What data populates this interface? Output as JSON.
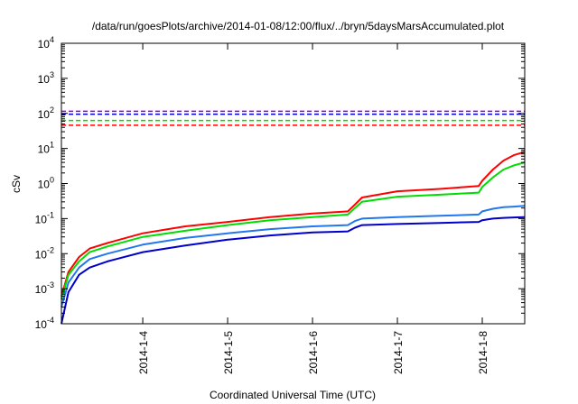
{
  "chart_data": {
    "type": "line",
    "title": "/data/run/goesPlots/archive/2014-01-08/12:00/flux/../bryn/5daysMarsAccumulated.plot",
    "xlabel": "Coordinated Universal Time (UTC)",
    "ylabel": "cSv",
    "yscale": "log",
    "ylim": [
      0.0001,
      10000
    ],
    "xlim": [
      "2014-01-03 01:00",
      "2014-01-08 12:00"
    ],
    "x_ticks": [
      "2014-1-4",
      "2014-1-5",
      "2014-1-6",
      "2014-1-7",
      "2014-1-8"
    ],
    "y_ticks": [
      {
        "base": "10",
        "exp": "-4"
      },
      {
        "base": "10",
        "exp": "-3"
      },
      {
        "base": "10",
        "exp": "-2"
      },
      {
        "base": "10",
        "exp": "-1"
      },
      {
        "base": "10",
        "exp": "0"
      },
      {
        "base": "10",
        "exp": "1"
      },
      {
        "base": "10",
        "exp": "2"
      },
      {
        "base": "10",
        "exp": "3"
      },
      {
        "base": "10",
        "exp": "4"
      }
    ],
    "grid": false,
    "legend": "none",
    "series": [
      {
        "color": "#ff0000",
        "style": "solid",
        "x": [
          "2014-01-03 01:00",
          "2014-01-03 03:00",
          "2014-01-03 06:00",
          "2014-01-03 09:00",
          "2014-01-03 14:00",
          "2014-01-04 00:00",
          "2014-01-04 12:00",
          "2014-01-05 00:00",
          "2014-01-05 12:00",
          "2014-01-06 00:00",
          "2014-01-06 10:00",
          "2014-01-06 12:00",
          "2014-01-06 14:00",
          "2014-01-07 00:00",
          "2014-01-07 12:00",
          "2014-01-07 23:00",
          "2014-01-08 00:00",
          "2014-01-08 03:00",
          "2014-01-08 06:00",
          "2014-01-08 09:00",
          "2014-01-08 12:00"
        ],
        "y": [
          0.0006,
          0.003,
          0.008,
          0.014,
          0.02,
          0.038,
          0.06,
          0.08,
          0.11,
          0.14,
          0.16,
          0.25,
          0.4,
          0.6,
          0.7,
          0.85,
          1.2,
          2.5,
          4.5,
          6.5,
          8
        ]
      },
      {
        "color": "#00dd00",
        "style": "solid",
        "x": [
          "2014-01-03 01:00",
          "2014-01-03 03:00",
          "2014-01-03 06:00",
          "2014-01-03 09:00",
          "2014-01-03 14:00",
          "2014-01-04 00:00",
          "2014-01-04 12:00",
          "2014-01-05 00:00",
          "2014-01-05 12:00",
          "2014-01-06 00:00",
          "2014-01-06 10:00",
          "2014-01-06 12:00",
          "2014-01-06 14:00",
          "2014-01-07 00:00",
          "2014-01-07 12:00",
          "2014-01-07 23:00",
          "2014-01-08 00:00",
          "2014-01-08 03:00",
          "2014-01-08 06:00",
          "2014-01-08 09:00",
          "2014-01-08 12:00"
        ],
        "y": [
          0.0005,
          0.0025,
          0.006,
          0.011,
          0.016,
          0.03,
          0.045,
          0.065,
          0.09,
          0.11,
          0.13,
          0.2,
          0.3,
          0.42,
          0.48,
          0.55,
          0.8,
          1.5,
          2.5,
          3.3,
          4
        ]
      },
      {
        "color": "#2277ee",
        "style": "solid",
        "x": [
          "2014-01-03 01:00",
          "2014-01-03 03:00",
          "2014-01-03 06:00",
          "2014-01-03 09:00",
          "2014-01-03 14:00",
          "2014-01-04 00:00",
          "2014-01-04 12:00",
          "2014-01-05 00:00",
          "2014-01-05 12:00",
          "2014-01-06 00:00",
          "2014-01-06 10:00",
          "2014-01-06 12:00",
          "2014-01-06 14:00",
          "2014-01-07 00:00",
          "2014-01-07 12:00",
          "2014-01-07 23:00",
          "2014-01-08 00:00",
          "2014-01-08 03:00",
          "2014-01-08 06:00",
          "2014-01-08 09:00",
          "2014-01-08 12:00"
        ],
        "y": [
          0.0003,
          0.0015,
          0.004,
          0.007,
          0.01,
          0.018,
          0.028,
          0.038,
          0.05,
          0.06,
          0.065,
          0.085,
          0.1,
          0.11,
          0.12,
          0.13,
          0.16,
          0.19,
          0.21,
          0.22,
          0.23
        ]
      },
      {
        "color": "#0000cc",
        "style": "solid",
        "x": [
          "2014-01-03 01:00",
          "2014-01-03 03:00",
          "2014-01-03 06:00",
          "2014-01-03 09:00",
          "2014-01-03 14:00",
          "2014-01-04 00:00",
          "2014-01-04 12:00",
          "2014-01-05 00:00",
          "2014-01-05 12:00",
          "2014-01-06 00:00",
          "2014-01-06 10:00",
          "2014-01-06 12:00",
          "2014-01-06 14:00",
          "2014-01-07 00:00",
          "2014-01-07 12:00",
          "2014-01-07 23:00",
          "2014-01-08 00:00",
          "2014-01-08 03:00",
          "2014-01-08 06:00",
          "2014-01-08 09:00",
          "2014-01-08 12:00"
        ],
        "y": [
          0.0001,
          0.0008,
          0.0025,
          0.004,
          0.006,
          0.011,
          0.017,
          0.025,
          0.033,
          0.04,
          0.043,
          0.055,
          0.065,
          0.07,
          0.075,
          0.08,
          0.09,
          0.1,
          0.105,
          0.108,
          0.11
        ]
      },
      {
        "color": "#9900cc",
        "style": "dashed",
        "x": [
          "2014-01-03 01:00",
          "2014-01-08 12:00"
        ],
        "y": [
          115,
          115
        ]
      },
      {
        "color": "#0000cc",
        "style": "dashed",
        "x": [
          "2014-01-03 01:00",
          "2014-01-08 12:00"
        ],
        "y": [
          95,
          95
        ]
      },
      {
        "color": "#00dd00",
        "style": "dashed",
        "x": [
          "2014-01-03 01:00",
          "2014-01-08 12:00"
        ],
        "y": [
          63,
          63
        ]
      },
      {
        "color": "#ff0000",
        "style": "dashed",
        "x": [
          "2014-01-03 01:00",
          "2014-01-08 12:00"
        ],
        "y": [
          46,
          46
        ]
      }
    ]
  }
}
